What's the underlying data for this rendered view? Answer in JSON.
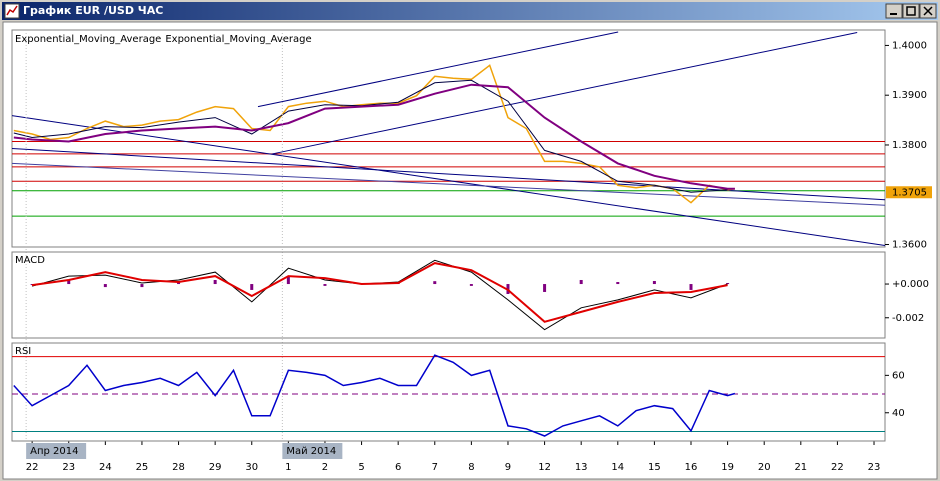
{
  "window": {
    "title": "График EUR /USD ЧАС"
  },
  "chart_data": [
    {
      "type": "line",
      "xlim": [
        -0.55,
        23.3
      ],
      "xticks": [
        {
          "value": 0,
          "label": "22"
        },
        {
          "value": 1,
          "label": "23"
        },
        {
          "value": 2,
          "label": "24"
        },
        {
          "value": 3,
          "label": "25"
        },
        {
          "value": 4,
          "label": "28"
        },
        {
          "value": 5,
          "label": "29"
        },
        {
          "value": 6,
          "label": "30"
        },
        {
          "value": 7,
          "label": "1"
        },
        {
          "value": 8,
          "label": "2"
        },
        {
          "value": 9,
          "label": "5"
        },
        {
          "value": 10,
          "label": "6"
        },
        {
          "value": 11,
          "label": "7"
        },
        {
          "value": 12,
          "label": "8"
        },
        {
          "value": 13,
          "label": "9"
        },
        {
          "value": 14,
          "label": "12"
        },
        {
          "value": 15,
          "label": "13"
        },
        {
          "value": 16,
          "label": "14"
        },
        {
          "value": 17,
          "label": "15"
        },
        {
          "value": 18,
          "label": "16"
        },
        {
          "value": 19,
          "label": "19"
        },
        {
          "value": 20,
          "label": "20"
        },
        {
          "value": 21,
          "label": "21"
        },
        {
          "value": 22,
          "label": "22"
        },
        {
          "value": 23,
          "label": "23"
        }
      ],
      "months": [
        {
          "value": 0,
          "label": "Апр 2014"
        },
        {
          "value": 7,
          "label": "Май 2014"
        }
      ],
      "ylim": [
        1.3595,
        1.4031
      ],
      "yticks": [
        {
          "value": 1.4,
          "label": "1.4000"
        },
        {
          "value": 1.39,
          "label": "1.3900"
        },
        {
          "value": 1.38,
          "label": "1.3800"
        },
        {
          "value": 1.36,
          "label": "1.3600"
        }
      ],
      "current_price": 1.3705,
      "current_price_color": "#f0a30a",
      "levels": [
        {
          "value": 1.3807,
          "color": "#d00000"
        },
        {
          "value": 1.3782,
          "color": "#d00000"
        },
        {
          "value": 1.3756,
          "color": "#d00000"
        },
        {
          "value": 1.3727,
          "color": "#d00000"
        },
        {
          "value": 1.3708,
          "color": "#00a000"
        },
        {
          "value": 1.3657,
          "color": "#00a000"
        }
      ],
      "trendlines": [
        {
          "color": "#000080",
          "x": [
            6.17,
            16.01
          ],
          "values": [
            1.3877,
            1.4027
          ]
        },
        {
          "color": "#000080",
          "x": [
            6.56,
            22.54
          ],
          "values": [
            1.3782,
            1.4026
          ]
        },
        {
          "color": "#000080",
          "x": [
            -0.55,
            23.3
          ],
          "values": [
            1.3859,
            1.3598
          ]
        },
        {
          "color": "#000080",
          "x": [
            -0.55,
            23.3
          ],
          "values": [
            1.3793,
            1.369
          ]
        },
        {
          "color": "#4040a0",
          "x": [
            -0.55,
            23.3
          ],
          "values": [
            1.3763,
            1.3679
          ]
        }
      ],
      "series": [
        {
          "color": "#f0a30a",
          "width": 1.5,
          "x": [
            -0.5,
            0,
            0.5,
            1,
            1.5,
            2,
            2.5,
            3,
            3.5,
            4,
            4.5,
            5,
            5.5,
            6,
            6.5,
            7,
            7.5,
            8,
            8.5,
            9,
            9.5,
            10,
            10.5,
            11,
            11.5,
            12,
            12.5,
            13,
            13.5,
            14,
            14.5,
            15,
            15.5,
            16,
            16.5,
            17,
            17.5,
            18,
            18.5,
            19,
            19.2
          ],
          "values": [
            1.3829,
            1.3822,
            1.3811,
            1.3815,
            1.3833,
            1.3848,
            1.3837,
            1.384,
            1.3848,
            1.3851,
            1.3866,
            1.3877,
            1.3873,
            1.3833,
            1.3829,
            1.3877,
            1.3884,
            1.3888,
            1.3877,
            1.3881,
            1.3884,
            1.3884,
            1.3899,
            1.3938,
            1.3934,
            1.3932,
            1.396,
            1.3855,
            1.3833,
            1.3767,
            1.3767,
            1.3763,
            1.3756,
            1.3719,
            1.3714,
            1.3719,
            1.3712,
            1.3684,
            1.3719,
            1.371,
            1.3712
          ]
        },
        {
          "name": "Exponential_Moving_Average",
          "color": "#000040",
          "width": 1,
          "x": [
            -0.5,
            0,
            1,
            2,
            3,
            4,
            5,
            6,
            7,
            8,
            9,
            10,
            11,
            12,
            13,
            14,
            15,
            16,
            17,
            18,
            19
          ],
          "values": [
            1.3824,
            1.3815,
            1.3822,
            1.3837,
            1.3835,
            1.3846,
            1.3855,
            1.3822,
            1.3868,
            1.3881,
            1.3879,
            1.3886,
            1.3925,
            1.393,
            1.3888,
            1.3789,
            1.3767,
            1.3727,
            1.3719,
            1.3705,
            1.371
          ]
        },
        {
          "name": "Exponential_Moving_Average",
          "color": "#800080",
          "width": 2,
          "x": [
            -0.5,
            0,
            1,
            2,
            3,
            4,
            5,
            6,
            7,
            8,
            9,
            10,
            11,
            12,
            13,
            14,
            15,
            16,
            17,
            18,
            19,
            19.2
          ],
          "values": [
            1.3815,
            1.3811,
            1.3807,
            1.3822,
            1.3829,
            1.3833,
            1.3837,
            1.3829,
            1.3844,
            1.3873,
            1.3877,
            1.3881,
            1.3903,
            1.3921,
            1.3916,
            1.3855,
            1.3807,
            1.3763,
            1.3738,
            1.3723,
            1.3712,
            1.3712
          ]
        }
      ]
    },
    {
      "type": "line",
      "title": "MACD",
      "xlim": [
        -0.55,
        23.3
      ],
      "ylim": [
        -0.0032,
        0.0019
      ],
      "yticks": [
        {
          "value": 0,
          "label": "+0.000"
        },
        -0.002
      ],
      "series": [
        {
          "type": "bar",
          "color": "#800080",
          "x": [
            0,
            1,
            2,
            3,
            4,
            5,
            6,
            7,
            8,
            9,
            10,
            11,
            12,
            13,
            14,
            15,
            16,
            17,
            18,
            19
          ],
          "values": [
            -6e-05,
            0.00023,
            -0.00018,
            -0.00018,
            0.00012,
            0.00024,
            -0.00035,
            0.00047,
            -0.00011,
            0,
            6e-05,
            0.00017,
            -0.00011,
            -0.00059,
            -0.00047,
            0.00024,
            0.00012,
            0.00018,
            -0.00035,
            6e-05
          ]
        },
        {
          "color": "#000000",
          "width": 1,
          "x": [
            0,
            1,
            2,
            3,
            4,
            5,
            6,
            7,
            8,
            9,
            10,
            11,
            12,
            13,
            14,
            15,
            16,
            17,
            18,
            19
          ],
          "values": [
            -0.00012,
            0.00047,
            0.00053,
            6e-05,
            0.00024,
            0.00071,
            -0.00106,
            0.00094,
            0.00024,
            0,
            0.00012,
            0.00141,
            0.00071,
            -0.00094,
            -0.00271,
            -0.00141,
            -0.00094,
            -0.00035,
            -0.00082,
            0
          ]
        },
        {
          "color": "#e00000",
          "width": 2,
          "x": [
            0,
            1,
            2,
            3,
            4,
            5,
            6,
            7,
            8,
            9,
            10,
            11,
            12,
            13,
            14,
            15,
            16,
            17,
            18,
            19
          ],
          "values": [
            -6e-05,
            0.00024,
            0.00071,
            0.00024,
            0.00012,
            0.00047,
            -0.00071,
            0.00047,
            0.00035,
            0,
            6e-05,
            0.00124,
            0.00082,
            -0.00035,
            -0.00224,
            -0.00165,
            -0.00106,
            -0.00053,
            -0.00047,
            -6e-05
          ]
        }
      ]
    },
    {
      "type": "line",
      "title": "RSI",
      "xlim": [
        -0.55,
        23.3
      ],
      "ylim": [
        24.9,
        77.3
      ],
      "yticks": [
        60,
        40
      ],
      "levels": [
        {
          "value": 70,
          "color": "#e00000"
        },
        {
          "value": 50,
          "color": "#800080",
          "dashed": true
        },
        {
          "value": 30,
          "color": "#008080"
        }
      ],
      "series": [
        {
          "color": "#0000cc",
          "width": 1.5,
          "x": [
            -0.5,
            0,
            0.5,
            1,
            1.5,
            2,
            2.5,
            3,
            3.5,
            4,
            4.5,
            5,
            5.5,
            6,
            6.5,
            7,
            7.5,
            8,
            8.5,
            9,
            9.5,
            10,
            10.5,
            11,
            11.5,
            12,
            12.5,
            13,
            13.5,
            14,
            14.5,
            15,
            15.5,
            16,
            16.5,
            17,
            17.5,
            18,
            18.5,
            19,
            19.2
          ],
          "values": [
            54.6,
            43.8,
            49.2,
            54.6,
            65.4,
            51.9,
            54.6,
            56.2,
            58.4,
            54.6,
            61.6,
            49.2,
            62.7,
            38.4,
            38.4,
            62.7,
            61.6,
            60,
            54.6,
            56.2,
            58.4,
            54.6,
            54.6,
            70.8,
            67,
            60,
            62.7,
            33,
            31.4,
            27.6,
            33,
            35.7,
            38.4,
            33,
            41.1,
            43.8,
            42.2,
            30.3,
            51.9,
            49.2,
            50.3
          ]
        }
      ]
    }
  ]
}
